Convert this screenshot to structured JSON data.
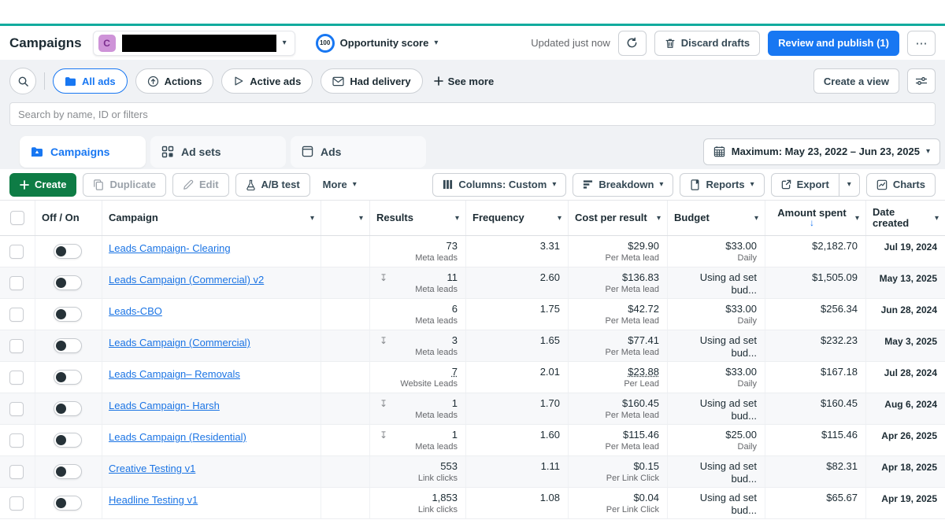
{
  "header": {
    "page_title": "Campaigns",
    "account": {
      "avatar_letter": "C"
    },
    "opportunity": {
      "score": "100",
      "label": "Opportunity score"
    },
    "updated_text": "Updated just now",
    "discard_button": "Discard drafts",
    "publish_button": "Review and publish (1)",
    "more_button": "⋯"
  },
  "filter_bar": {
    "pills": [
      {
        "label": "All ads",
        "active": true
      },
      {
        "label": "Actions",
        "active": false
      },
      {
        "label": "Active ads",
        "active": false
      },
      {
        "label": "Had delivery",
        "active": false
      }
    ],
    "see_more": "See more",
    "create_view_button": "Create a view"
  },
  "search": {
    "placeholder": "Search by name, ID or filters"
  },
  "tabs": [
    {
      "label": "Campaigns",
      "active": true
    },
    {
      "label": "Ad sets",
      "active": false
    },
    {
      "label": "Ads",
      "active": false
    }
  ],
  "date_range": {
    "label": "Maximum: May 23, 2022 – Jun 23, 2025"
  },
  "toolbar": {
    "create": "Create",
    "duplicate": "Duplicate",
    "edit": "Edit",
    "ab_test": "A/B test",
    "more": "More",
    "columns": "Columns: Custom",
    "breakdown": "Breakdown",
    "reports": "Reports",
    "export": "Export",
    "charts": "Charts"
  },
  "table": {
    "columns": [
      "Off / On",
      "Campaign",
      "",
      "Results",
      "Frequency",
      "Cost per result",
      "Budget",
      "Amount spent",
      "Date created"
    ],
    "sort_column": "Amount spent",
    "sort_direction": "desc",
    "rows": [
      {
        "name": "Leads Campaign- Clearing",
        "attr_icon": false,
        "results": "73",
        "results_sub": "Meta leads",
        "frequency": "3.31",
        "cost": "$29.90",
        "cost_sub": "Per Meta lead",
        "budget": "$33.00",
        "budget_sub": "Daily",
        "spent": "$2,182.70",
        "date": "Jul 19, 2024"
      },
      {
        "name": "Leads Campaign (Commercial) v2",
        "attr_icon": true,
        "results": "11",
        "results_sub": "Meta leads",
        "frequency": "2.60",
        "cost": "$136.83",
        "cost_sub": "Per Meta lead",
        "budget": "Using ad set bud...",
        "budget_sub": "",
        "spent": "$1,505.09",
        "date": "May 13, 2025"
      },
      {
        "name": "Leads-CBO",
        "attr_icon": false,
        "results": "6",
        "results_sub": "Meta leads",
        "frequency": "1.75",
        "cost": "$42.72",
        "cost_sub": "Per Meta lead",
        "budget": "$33.00",
        "budget_sub": "Daily",
        "spent": "$256.34",
        "date": "Jun 28, 2024"
      },
      {
        "name": "Leads Campaign (Commercial)",
        "attr_icon": true,
        "results": "3",
        "results_sub": "Meta leads",
        "frequency": "1.65",
        "cost": "$77.41",
        "cost_sub": "Per Meta lead",
        "budget": "Using ad set bud...",
        "budget_sub": "",
        "spent": "$232.23",
        "date": "May 3, 2025"
      },
      {
        "name": "Leads Campaign– Removals",
        "attr_icon": false,
        "results": "7",
        "results_sub": "Website Leads",
        "results_underline": true,
        "frequency": "2.01",
        "cost": "$23.88",
        "cost_sub": "Per Lead",
        "cost_underline": true,
        "budget": "$33.00",
        "budget_sub": "Daily",
        "spent": "$167.18",
        "date": "Jul 28, 2024"
      },
      {
        "name": "Leads Campaign- Harsh",
        "attr_icon": true,
        "results": "1",
        "results_sub": "Meta leads",
        "frequency": "1.70",
        "cost": "$160.45",
        "cost_sub": "Per Meta lead",
        "budget": "Using ad set bud...",
        "budget_sub": "",
        "spent": "$160.45",
        "date": "Aug 6, 2024"
      },
      {
        "name": "Leads Campaign (Residential)",
        "attr_icon": true,
        "results": "1",
        "results_sub": "Meta leads",
        "frequency": "1.60",
        "cost": "$115.46",
        "cost_sub": "Per Meta lead",
        "budget": "$25.00",
        "budget_sub": "Daily",
        "spent": "$115.46",
        "date": "Apr 26, 2025"
      },
      {
        "name": "Creative Testing v1",
        "attr_icon": false,
        "results": "553",
        "results_sub": "Link clicks",
        "frequency": "1.11",
        "cost": "$0.15",
        "cost_sub": "Per Link Click",
        "budget": "Using ad set bud...",
        "budget_sub": "",
        "spent": "$82.31",
        "date": "Apr 18, 2025"
      },
      {
        "name": "Headline Testing v1",
        "attr_icon": false,
        "results": "1,853",
        "results_sub": "Link clicks",
        "frequency": "1.08",
        "cost": "$0.04",
        "cost_sub": "Per Link Click",
        "budget": "Using ad set bud...",
        "budget_sub": "",
        "spent": "$65.67",
        "date": "Apr 19, 2025"
      }
    ]
  },
  "colors": {
    "accent_blue": "#1877f2",
    "create_green": "#0e7c45",
    "teal_top_bar": "#12ab9e",
    "link_blue": "#1b74e4",
    "toggle_knob": "#263238"
  }
}
